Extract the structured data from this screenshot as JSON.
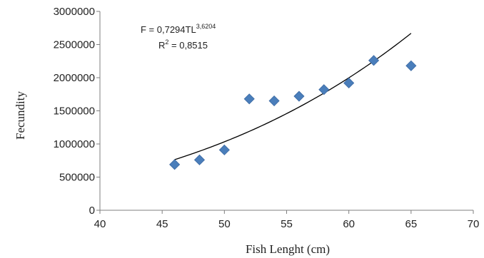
{
  "chart_data": {
    "type": "scatter",
    "title": "",
    "xlabel": "Fish Lenght  (cm)",
    "ylabel": "Fecundity",
    "xlim": [
      40,
      70
    ],
    "ylim": [
      0,
      3000000
    ],
    "x_ticks": [
      "40",
      "45",
      "50",
      "55",
      "60",
      "65",
      "70"
    ],
    "y_ticks": [
      "0",
      "500000",
      "1000000",
      "1500000",
      "2000000",
      "2500000",
      "3000000"
    ],
    "grid": false,
    "legend": "none",
    "series": [
      {
        "points": [
          {
            "x": 46,
            "y": 690000
          },
          {
            "x": 48,
            "y": 760000
          },
          {
            "x": 50,
            "y": 910000
          },
          {
            "x": 52,
            "y": 1680000
          },
          {
            "x": 54,
            "y": 1650000
          },
          {
            "x": 56,
            "y": 1720000
          },
          {
            "x": 58,
            "y": 1820000
          },
          {
            "x": 60,
            "y": 1920000
          },
          {
            "x": 62,
            "y": 2260000
          },
          {
            "x": 65,
            "y": 2180000
          }
        ],
        "color": "#4a7ebb"
      }
    ],
    "trendline": {
      "type": "power",
      "coefficient": 0.7294,
      "exponent": 3.6204,
      "x_range": [
        46,
        65
      ],
      "color": "#000000"
    },
    "annotations": {
      "equation_main": "F = 0,7294TL",
      "equation_exp": "3,6204",
      "r2_label": "R",
      "r2_sup": "2",
      "r2_value": " = 0,8515"
    }
  }
}
